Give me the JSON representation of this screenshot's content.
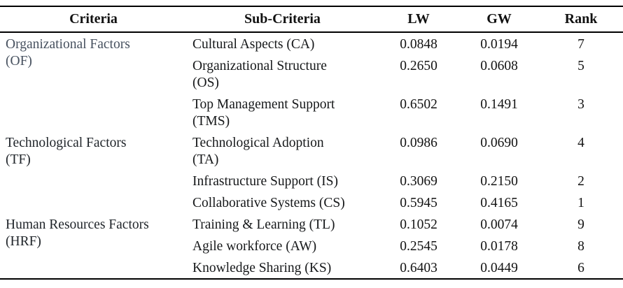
{
  "page": {
    "background_color": "#ffffff",
    "text_color": "#1a1a1a",
    "muted_criteria_color": "#47515f",
    "rule_color": "#000000"
  },
  "table": {
    "headers": {
      "criteria": "Criteria",
      "sub_criteria": "Sub-Criteria",
      "lw": "LW",
      "gw": "GW",
      "rank": "Rank"
    },
    "groups": [
      {
        "criteria": "Organizational Factors (OF)",
        "criteria_lines": [
          "Organizational Factors",
          "(OF)"
        ],
        "rows": [
          {
            "sub": "Cultural Aspects (CA)",
            "sub_lines": [
              "Cultural Aspects (CA)"
            ],
            "lw": "0.0848",
            "gw": "0.0194",
            "rank": "7"
          },
          {
            "sub": "Organizational Structure (OS)",
            "sub_lines": [
              "Organizational Structure",
              "(OS)"
            ],
            "lw": "0.2650",
            "gw": "0.0608",
            "rank": "5"
          },
          {
            "sub": "Top Management Support (TMS)",
            "sub_lines": [
              "Top Management Support",
              "(TMS)"
            ],
            "lw": "0.6502",
            "gw": "0.1491",
            "rank": "3"
          }
        ]
      },
      {
        "criteria": "Technological Factors (TF)",
        "criteria_lines": [
          "Technological Factors",
          "(TF)"
        ],
        "rows": [
          {
            "sub": "Technological Adoption (TA)",
            "sub_lines": [
              "Technological Adoption",
              "(TA)"
            ],
            "lw": "0.0986",
            "gw": "0.0690",
            "rank": "4"
          },
          {
            "sub": "Infrastructure Support (IS)",
            "sub_lines": [
              "Infrastructure Support (IS)"
            ],
            "lw": "0.3069",
            "gw": "0.2150",
            "rank": "2"
          },
          {
            "sub": "Collaborative Systems (CS)",
            "sub_lines": [
              "Collaborative Systems (CS)"
            ],
            "lw": "0.5945",
            "gw": "0.4165",
            "rank": "1"
          }
        ]
      },
      {
        "criteria": "Human Resources Factors (HRF)",
        "criteria_lines": [
          "Human Resources Factors",
          "(HRF)"
        ],
        "rows": [
          {
            "sub": "Training & Learning (TL)",
            "sub_lines": [
              "Training & Learning (TL)"
            ],
            "lw": "0.1052",
            "gw": "0.0074",
            "rank": "9"
          },
          {
            "sub": "Agile workforce (AW)",
            "sub_lines": [
              "Agile workforce (AW)"
            ],
            "lw": "0.2545",
            "gw": "0.0178",
            "rank": "8"
          },
          {
            "sub": "Knowledge Sharing (KS)",
            "sub_lines": [
              "Knowledge Sharing (KS)"
            ],
            "lw": "0.6403",
            "gw": "0.0449",
            "rank": "6"
          }
        ]
      }
    ]
  }
}
